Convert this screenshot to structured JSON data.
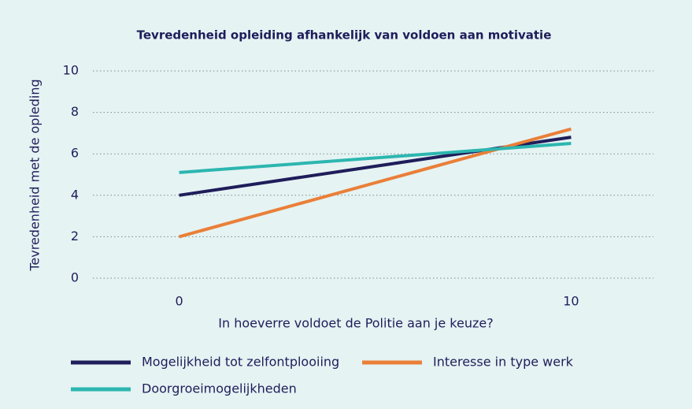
{
  "chart_data": {
    "type": "line",
    "title": "Tevredenheid opleiding afhankelijk van voldoen aan motivatie",
    "x_label": "In hoeverre voldoet de Politie aan je keuze?",
    "y_label": "Tevredenheid met de opleding",
    "x": [
      0,
      10
    ],
    "series": [
      {
        "name": "Mogelijkheid tot zelfontplooiing",
        "color": "#1f1d5a",
        "values": [
          4.0,
          6.8
        ]
      },
      {
        "name": "Interesse in type werk",
        "color": "#ea7f38",
        "values": [
          2.0,
          7.2
        ]
      },
      {
        "name": "Doorgroeimogelijkheden",
        "color": "#2cb6b0",
        "values": [
          5.1,
          6.5
        ]
      }
    ],
    "xlim": [
      -2.2,
      12.1
    ],
    "xticks": [
      0,
      10
    ],
    "ylim": [
      0,
      10
    ],
    "yticks": [
      0,
      2,
      4,
      6,
      8,
      10
    ],
    "grid": true
  }
}
